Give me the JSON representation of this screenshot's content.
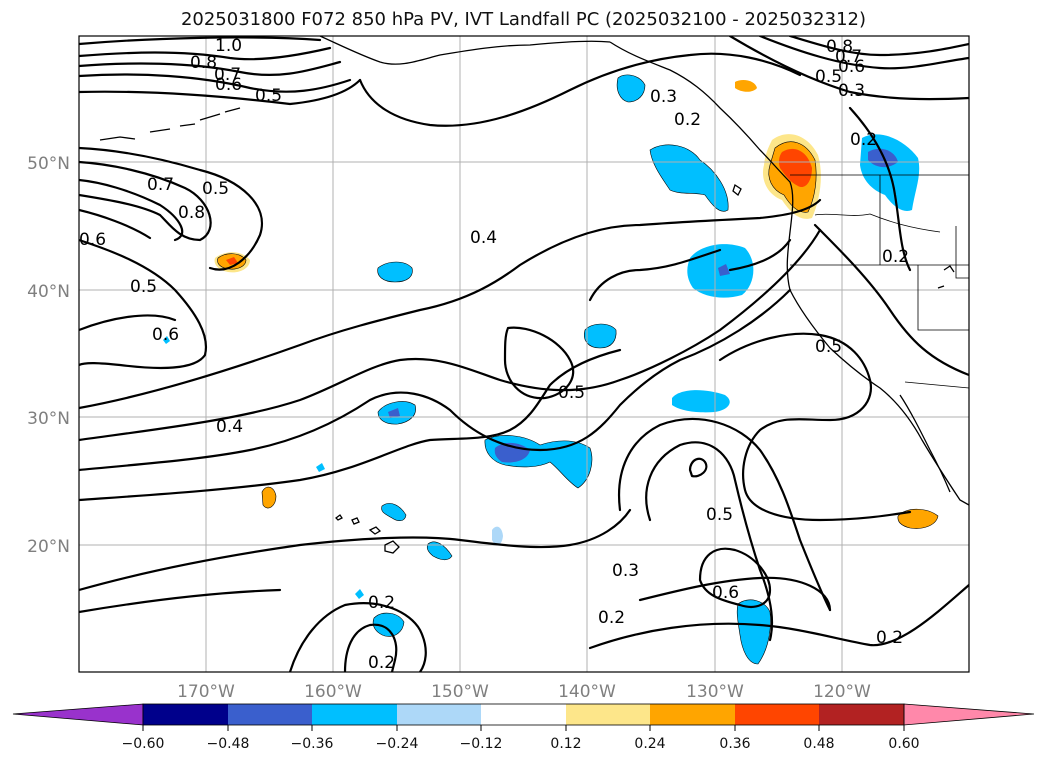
{
  "title": "2025031800 F072 850 hPa PV, IVT Landfall PC (2025032100 - 2025032312)",
  "map": {
    "lon_labels": [
      "170°W",
      "160°W",
      "150°W",
      "140°W",
      "130°W",
      "120°W"
    ],
    "lat_labels": [
      "50°N",
      "40°N",
      "30°N",
      "20°N"
    ],
    "contour_labels": [
      "1.0",
      "0.8",
      "0.7",
      "0.6",
      "0.5",
      "0.5",
      "0.7",
      "0.8",
      "0.6",
      "0.5",
      "0.6",
      "0.4",
      "0.4",
      "0.5",
      "0.5",
      "0.3",
      "0.2",
      "0.8",
      "0.7",
      "0.6",
      "0.5",
      "0.3",
      "0.2",
      "0.2",
      "0.5",
      "0.3",
      "0.6",
      "0.2",
      "0.2",
      "0.2",
      "0.2"
    ]
  },
  "colorbar": {
    "tick_labels": [
      "−0.60",
      "−0.48",
      "−0.36",
      "−0.24",
      "−0.12",
      "0.12",
      "0.24",
      "0.36",
      "0.48",
      "0.60"
    ],
    "colors": [
      "#9932cc",
      "#00008b",
      "#3a5fcd",
      "#00bfff",
      "#add8f8",
      "#ffffff",
      "#fde68a",
      "#ffa500",
      "#ff4500",
      "#b22222",
      "#ff88aa"
    ]
  },
  "shading": {
    "positive_colors": [
      "#fde68a",
      "#ffa500",
      "#ff4500"
    ],
    "negative_colors": [
      "#add8f8",
      "#00bfff",
      "#3a5fcd"
    ]
  }
}
